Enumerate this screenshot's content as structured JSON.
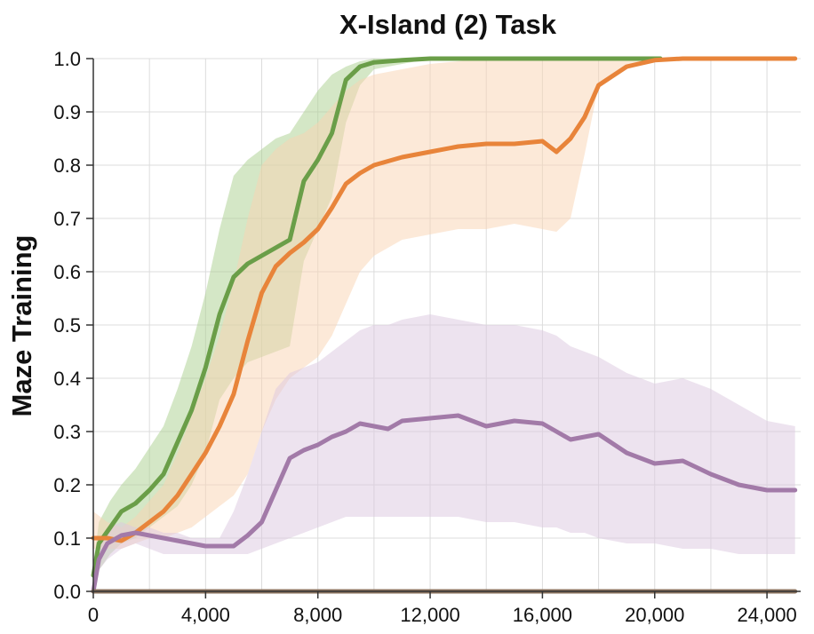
{
  "chart_data": {
    "type": "line",
    "title": "X-Island (2) Task",
    "xlabel": "",
    "ylabel": "Maze Training",
    "xlim": [
      0,
      25200
    ],
    "ylim": [
      0,
      1.0
    ],
    "x_ticks": [
      0,
      4000,
      8000,
      12000,
      16000,
      20000,
      24000
    ],
    "x_tick_labels": [
      "0",
      "4,000",
      "8,000",
      "12,000",
      "16,000",
      "20,000",
      "24,000"
    ],
    "y_ticks": [
      0,
      0.1,
      0.2,
      0.3,
      0.4,
      0.5,
      0.6,
      0.7,
      0.8,
      0.9,
      1.0
    ],
    "y_tick_labels": [
      "0.0",
      "0.1",
      "0.2",
      "0.3",
      "0.4",
      "0.5",
      "0.6",
      "0.7",
      "0.8",
      "0.9",
      "1.0"
    ],
    "grid": true,
    "legend": false,
    "series": [
      {
        "color": "#6a9e48",
        "band_color": "#a9d08e",
        "x": [
          0,
          200,
          600,
          1000,
          1500,
          2000,
          2500,
          3000,
          3500,
          4000,
          4500,
          5000,
          5500,
          6000,
          6500,
          7000,
          7500,
          8000,
          8500,
          9000,
          9500,
          10000,
          11000,
          12000,
          13000,
          14000,
          16000,
          18000,
          20000,
          20200
        ],
        "mean": [
          0.03,
          0.09,
          0.12,
          0.15,
          0.165,
          0.19,
          0.22,
          0.28,
          0.34,
          0.42,
          0.52,
          0.59,
          0.615,
          0.63,
          0.645,
          0.66,
          0.77,
          0.81,
          0.86,
          0.96,
          0.985,
          0.993,
          0.997,
          1.0,
          1.0,
          1.0,
          1.0,
          1.0,
          1.0,
          1.0
        ],
        "lower": [
          0.0,
          0.04,
          0.07,
          0.09,
          0.1,
          0.12,
          0.14,
          0.16,
          0.2,
          0.26,
          0.36,
          0.4,
          0.43,
          0.44,
          0.45,
          0.46,
          0.62,
          0.68,
          0.74,
          0.88,
          0.95,
          0.98,
          0.99,
          1.0,
          1.0,
          1.0,
          1.0,
          1.0,
          1.0,
          1.0
        ],
        "upper": [
          0.05,
          0.13,
          0.17,
          0.2,
          0.23,
          0.27,
          0.31,
          0.38,
          0.46,
          0.56,
          0.68,
          0.78,
          0.81,
          0.83,
          0.85,
          0.86,
          0.9,
          0.94,
          0.97,
          0.985,
          0.995,
          1.0,
          1.0,
          1.0,
          1.0,
          1.0,
          1.0,
          1.0,
          1.0,
          1.0
        ]
      },
      {
        "color": "#e8843a",
        "band_color": "#f9d3b2",
        "x": [
          0,
          500,
          1000,
          1500,
          2000,
          2500,
          3000,
          3500,
          4000,
          4500,
          5000,
          5500,
          6000,
          6500,
          7000,
          7500,
          8000,
          8500,
          9000,
          9500,
          10000,
          11000,
          12000,
          13000,
          14000,
          15000,
          16000,
          16500,
          17000,
          17500,
          18000,
          19000,
          20000,
          21000,
          22000,
          23000,
          24000,
          25000
        ],
        "mean": [
          0.1,
          0.1,
          0.095,
          0.11,
          0.13,
          0.15,
          0.18,
          0.22,
          0.26,
          0.31,
          0.37,
          0.47,
          0.56,
          0.61,
          0.635,
          0.655,
          0.68,
          0.72,
          0.765,
          0.785,
          0.8,
          0.815,
          0.825,
          0.835,
          0.84,
          0.84,
          0.845,
          0.825,
          0.85,
          0.89,
          0.95,
          0.985,
          0.997,
          1.0,
          1.0,
          1.0,
          1.0,
          1.0
        ],
        "lower": [
          0.08,
          0.08,
          0.08,
          0.09,
          0.1,
          0.1,
          0.11,
          0.12,
          0.14,
          0.16,
          0.18,
          0.22,
          0.3,
          0.36,
          0.4,
          0.42,
          0.44,
          0.48,
          0.54,
          0.6,
          0.63,
          0.66,
          0.67,
          0.68,
          0.68,
          0.69,
          0.68,
          0.675,
          0.7,
          0.82,
          0.95,
          0.98,
          0.995,
          1.0,
          1.0,
          1.0,
          1.0,
          1.0
        ],
        "upper": [
          0.15,
          0.13,
          0.12,
          0.14,
          0.17,
          0.2,
          0.26,
          0.33,
          0.4,
          0.48,
          0.58,
          0.7,
          0.8,
          0.83,
          0.85,
          0.86,
          0.88,
          0.91,
          0.94,
          0.96,
          0.97,
          0.98,
          0.99,
          0.995,
          1.0,
          1.0,
          1.0,
          1.0,
          1.0,
          1.0,
          1.0,
          1.0,
          1.0,
          1.0,
          1.0,
          1.0,
          1.0,
          1.0
        ]
      },
      {
        "color": "#a27aa8",
        "band_color": "#dcc8e0",
        "x": [
          0,
          200,
          500,
          1000,
          1500,
          2000,
          2500,
          3000,
          3500,
          4000,
          4500,
          5000,
          5500,
          6000,
          6500,
          7000,
          7500,
          8000,
          8500,
          9000,
          9500,
          10000,
          10500,
          11000,
          12000,
          13000,
          14000,
          15000,
          16000,
          16500,
          17000,
          17500,
          18000,
          19000,
          20000,
          21000,
          22000,
          23000,
          24000,
          25000
        ],
        "mean": [
          0.0,
          0.06,
          0.09,
          0.105,
          0.11,
          0.105,
          0.1,
          0.095,
          0.09,
          0.085,
          0.085,
          0.085,
          0.105,
          0.13,
          0.19,
          0.25,
          0.265,
          0.275,
          0.29,
          0.3,
          0.315,
          0.31,
          0.305,
          0.32,
          0.325,
          0.33,
          0.31,
          0.32,
          0.315,
          0.3,
          0.285,
          0.29,
          0.295,
          0.26,
          0.24,
          0.245,
          0.22,
          0.2,
          0.19,
          0.19
        ],
        "lower": [
          0.0,
          0.04,
          0.06,
          0.08,
          0.09,
          0.08,
          0.07,
          0.07,
          0.07,
          0.07,
          0.07,
          0.07,
          0.07,
          0.08,
          0.09,
          0.1,
          0.11,
          0.12,
          0.13,
          0.14,
          0.14,
          0.14,
          0.14,
          0.14,
          0.14,
          0.14,
          0.13,
          0.13,
          0.12,
          0.12,
          0.11,
          0.11,
          0.1,
          0.09,
          0.09,
          0.08,
          0.08,
          0.07,
          0.07,
          0.07
        ],
        "upper": [
          0.0,
          0.08,
          0.12,
          0.13,
          0.12,
          0.12,
          0.11,
          0.11,
          0.1,
          0.1,
          0.1,
          0.15,
          0.22,
          0.3,
          0.38,
          0.41,
          0.42,
          0.43,
          0.45,
          0.47,
          0.49,
          0.5,
          0.5,
          0.51,
          0.52,
          0.51,
          0.5,
          0.5,
          0.49,
          0.48,
          0.46,
          0.45,
          0.44,
          0.41,
          0.39,
          0.4,
          0.38,
          0.35,
          0.32,
          0.31
        ]
      },
      {
        "color": "#8c7460",
        "band_color": null,
        "x": [
          0,
          25000
        ],
        "mean": [
          0.0,
          0.0
        ],
        "lower": null,
        "upper": null
      }
    ]
  }
}
